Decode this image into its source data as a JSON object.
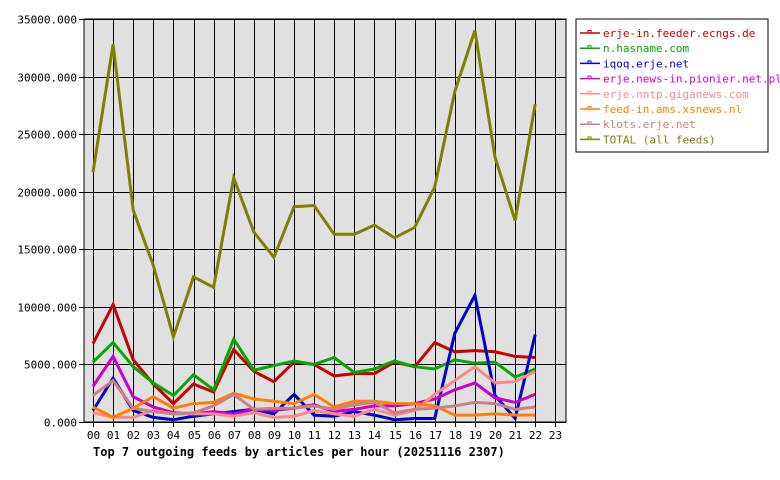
{
  "chart_data": {
    "type": "line",
    "title": "Top 7 outgoing feeds by articles per hour (20251116 2307)",
    "xlabel": "",
    "ylabel": "",
    "ylim": [
      0,
      35000
    ],
    "y_ticks": [
      "0.000",
      "5000.000",
      "10000.000",
      "15000.000",
      "20000.000",
      "25000.000",
      "30000.000",
      "35000.000"
    ],
    "y_tick_values": [
      0,
      5000,
      10000,
      15000,
      20000,
      25000,
      30000,
      35000
    ],
    "categories": [
      "00",
      "01",
      "02",
      "03",
      "04",
      "05",
      "06",
      "07",
      "08",
      "09",
      "10",
      "11",
      "12",
      "13",
      "14",
      "15",
      "16",
      "17",
      "18",
      "19",
      "20",
      "21",
      "22",
      "23"
    ],
    "grid": true,
    "legend_position": "right",
    "plot_background": "#e0e0e0",
    "series": [
      {
        "name": "erje-in.feeder.ecngs.de",
        "color": "#cc0000",
        "values": [
          6800,
          10200,
          5400,
          3300,
          1600,
          3300,
          2600,
          6300,
          4400,
          3500,
          5200,
          5000,
          4000,
          4200,
          4200,
          5200,
          4800,
          6900,
          6100,
          6200,
          6100,
          5700,
          5600
        ]
      },
      {
        "name": "n.hasname.com",
        "color": "#00aa00",
        "values": [
          5200,
          6900,
          4800,
          3400,
          2300,
          4100,
          2800,
          7200,
          4500,
          4900,
          5300,
          5000,
          5600,
          4300,
          4600,
          5300,
          4800,
          4600,
          5400,
          5100,
          5200,
          3900,
          4600
        ]
      },
      {
        "name": "iqoq.erje.net",
        "color": "#0000cc",
        "values": [
          1000,
          3800,
          1000,
          400,
          200,
          500,
          700,
          900,
          1100,
          700,
          2400,
          600,
          500,
          900,
          600,
          200,
          300,
          300,
          7700,
          11000,
          2300,
          300,
          7600
        ]
      },
      {
        "name": "erje.news-in.pionier.net.pl",
        "color": "#cc00cc",
        "values": [
          3100,
          5700,
          2200,
          1300,
          800,
          700,
          900,
          700,
          1100,
          1000,
          1200,
          1500,
          900,
          1100,
          1400,
          1400,
          1600,
          2000,
          2800,
          3400,
          2100,
          1700,
          2400
        ]
      },
      {
        "name": "erje.nntp.giganews.com",
        "color": "#ff8888",
        "values": [
          800,
          400,
          400,
          1000,
          700,
          700,
          700,
          500,
          800,
          400,
          500,
          1000,
          700,
          500,
          1100,
          600,
          1000,
          2400,
          3600,
          4800,
          3400,
          3500,
          4400
        ]
      },
      {
        "name": "feed-in.ams.xsnews.nl",
        "color": "#ff8000",
        "values": [
          1300,
          400,
          1200,
          2200,
          1200,
          1600,
          1700,
          2500,
          2000,
          1800,
          1600,
          2400,
          1300,
          1800,
          1800,
          1600,
          1600,
          1400,
          600,
          600,
          700,
          600,
          600
        ]
      },
      {
        "name": "klots.erje.net",
        "color": "#cc8080",
        "values": [
          2300,
          3600,
          1200,
          900,
          700,
          800,
          1400,
          2400,
          1100,
          1200,
          1200,
          1400,
          1100,
          1500,
          1700,
          800,
          1100,
          1200,
          1400,
          1700,
          1600,
          1100,
          1300
        ]
      },
      {
        "name": "TOTAL (all feeds)",
        "color": "#808000",
        "values": [
          21700,
          32800,
          18400,
          13600,
          7400,
          12600,
          11700,
          21200,
          16500,
          14300,
          18700,
          18800,
          16300,
          16300,
          17100,
          16000,
          16900,
          20400,
          28700,
          34000,
          23000,
          17500,
          27600
        ]
      }
    ]
  }
}
